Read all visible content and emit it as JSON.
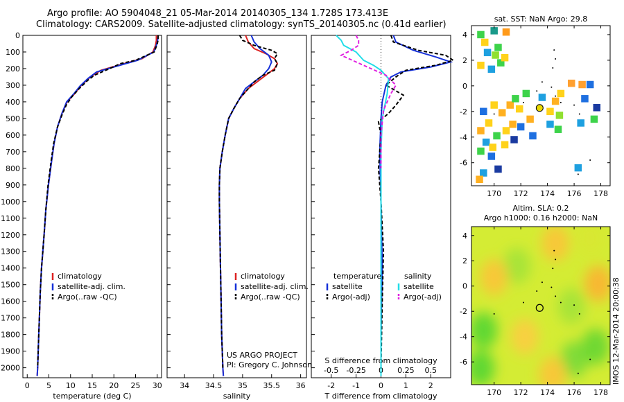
{
  "header": {
    "line1": "Argo profile: AO 5904048_21 05-Mar-2014 20140305_134 1.728S 173.413E",
    "line2": "Climatology: CARS2009. Satellite-adjusted climatology: synTS_20140305.nc (0.41d earlier)"
  },
  "footer_stamp": "IMOS 12-Mar-2014 20:00:38",
  "colors": {
    "climatology": "#dd2222",
    "satellite": "#1530d8",
    "argo": "#000000",
    "sal_satellite": "#22dde8",
    "sal_argo": "#e020e0"
  },
  "chart_data": [
    {
      "id": "temperature",
      "type": "line",
      "xlabel": "temperature (deg C)",
      "ylabel": "",
      "xlim": [
        -1,
        31
      ],
      "ylim": [
        2060,
        0
      ],
      "xticks": [
        0,
        5,
        10,
        15,
        20,
        25,
        30
      ],
      "xtick_labels": [
        "0",
        "5",
        "10",
        "15",
        "20",
        "25",
        "30"
      ],
      "yticks": [
        0,
        100,
        200,
        300,
        400,
        500,
        600,
        700,
        800,
        900,
        1000,
        1100,
        1200,
        1300,
        1400,
        1500,
        1600,
        1700,
        1800,
        1900,
        2000
      ],
      "ytick_labels": [
        "0",
        "100",
        "200",
        "300",
        "400",
        "500",
        "600",
        "700",
        "800",
        "900",
        "1000",
        "1100",
        "1200",
        "1300",
        "1400",
        "1500",
        "1600",
        "1700",
        "1800",
        "1900",
        "2000"
      ],
      "legend": {
        "position": "lower-left",
        "items": [
          "climatology",
          "satellite-adj. clim.",
          "Argo(..raw -QC)"
        ]
      },
      "series": [
        {
          "name": "climatology",
          "color_key": "climatology",
          "dash": false,
          "x": [
            29.8,
            29.8,
            29.6,
            29.0,
            26.5,
            21.0,
            17.0,
            14.6,
            12.5,
            11.0,
            9.2,
            8.0,
            7.0,
            6.2,
            5.6,
            4.9,
            4.3,
            3.9,
            3.3,
            3.0,
            2.8,
            2.6,
            2.4,
            2.3
          ],
          "y": [
            0,
            30,
            60,
            100,
            140,
            180,
            210,
            250,
            300,
            350,
            400,
            470,
            550,
            650,
            760,
            900,
            1050,
            1200,
            1400,
            1550,
            1700,
            1850,
            2000,
            2050
          ]
        },
        {
          "name": "satellite-adj. clim.",
          "color_key": "satellite",
          "dash": false,
          "x": [
            30.2,
            30.1,
            29.8,
            29.2,
            25.5,
            20.0,
            16.0,
            14.0,
            12.2,
            10.8,
            9.1,
            8.0,
            7.0,
            6.2,
            5.6,
            4.9,
            4.3,
            3.9,
            3.3,
            3.0,
            2.8,
            2.6,
            2.4,
            2.3
          ],
          "y": [
            0,
            30,
            60,
            100,
            150,
            190,
            220,
            260,
            305,
            350,
            400,
            470,
            550,
            650,
            760,
            900,
            1050,
            1200,
            1400,
            1550,
            1700,
            1850,
            2000,
            2050
          ]
        },
        {
          "name": "Argo(..raw -QC)",
          "color_key": "argo",
          "dash": true,
          "x": [
            30.2,
            30.2,
            29.9,
            29.3,
            25.0,
            21.5,
            19.0,
            15.5,
            14.0,
            12.0,
            10.3,
            9.0,
            8.0,
            7.0,
            6.1,
            5.5,
            4.8,
            4.3,
            3.9,
            3.3,
            3.0,
            2.8,
            2.6,
            2.4
          ],
          "y": [
            0,
            30,
            60,
            100,
            150,
            170,
            200,
            240,
            270,
            320,
            370,
            420,
            480,
            550,
            650,
            760,
            900,
            1050,
            1200,
            1400,
            1550,
            1700,
            1850,
            2000
          ]
        }
      ]
    },
    {
      "id": "salinity",
      "type": "line",
      "xlabel": "salinity",
      "ylabel": "",
      "xlim": [
        33.7,
        36.1
      ],
      "ylim": [
        2060,
        0
      ],
      "xticks": [
        34,
        34.5,
        35,
        35.5,
        36
      ],
      "xtick_labels": [
        "34",
        "34.5",
        "35",
        "35.5",
        "36"
      ],
      "legend": {
        "position": "lower-left",
        "items": [
          "climatology",
          "satellite-adj. clim.",
          "Argo(..raw -QC)"
        ]
      },
      "annotation": {
        "line1": "US ARGO PROJECT",
        "line2": "PI: Gregory C. Johnson"
      },
      "series": [
        {
          "name": "climatology",
          "color_key": "climatology",
          "dash": false,
          "x": [
            35.05,
            35.1,
            35.2,
            35.4,
            35.55,
            35.6,
            35.55,
            35.4,
            35.25,
            35.1,
            34.95,
            34.85,
            34.76,
            34.7,
            34.65,
            34.61,
            34.6,
            34.6,
            34.61,
            34.62,
            34.63,
            34.64,
            34.65,
            34.66,
            34.67
          ],
          "y": [
            0,
            40,
            80,
            110,
            140,
            170,
            200,
            240,
            280,
            320,
            380,
            440,
            500,
            600,
            700,
            800,
            900,
            1000,
            1200,
            1400,
            1600,
            1800,
            1900,
            2000,
            2050
          ]
        },
        {
          "name": "satellite-adj. clim.",
          "color_key": "satellite",
          "dash": false,
          "x": [
            35.15,
            35.2,
            35.3,
            35.45,
            35.5,
            35.45,
            35.35,
            35.2,
            35.05,
            34.95,
            34.85,
            34.76,
            34.7,
            34.65,
            34.61,
            34.6,
            34.6,
            34.61,
            34.62,
            34.63,
            34.64,
            34.65,
            34.66,
            34.67
          ],
          "y": [
            0,
            40,
            80,
            120,
            160,
            200,
            240,
            280,
            320,
            380,
            440,
            500,
            600,
            700,
            800,
            900,
            1000,
            1200,
            1400,
            1600,
            1800,
            1900,
            2000,
            2050
          ]
        },
        {
          "name": "Argo(..raw -QC)",
          "color_key": "argo",
          "dash": true,
          "x": [
            34.95,
            35.0,
            35.2,
            35.5,
            35.6,
            35.55,
            35.6,
            35.55,
            35.35,
            35.2,
            35.1,
            34.95,
            34.85,
            34.76,
            34.7,
            34.65,
            34.61,
            34.6,
            34.6,
            34.61,
            34.62,
            34.63,
            34.64,
            34.65,
            34.66
          ],
          "y": [
            0,
            30,
            60,
            90,
            110,
            140,
            170,
            210,
            240,
            280,
            320,
            380,
            440,
            500,
            600,
            700,
            800,
            900,
            1000,
            1200,
            1400,
            1600,
            1800,
            1900,
            2000
          ]
        }
      ]
    },
    {
      "id": "difference",
      "type": "line",
      "xlabel": "T difference from climatology",
      "xlabel_top": "S difference from climatology",
      "xlim": [
        -2.8,
        2.8
      ],
      "ylim": [
        2060,
        0
      ],
      "xticks": [
        -2,
        -1,
        0,
        1,
        2
      ],
      "xtick_labels": [
        "-2",
        "-1",
        "0",
        "1",
        "2"
      ],
      "sticks": [
        -0.5,
        -0.25,
        0,
        0.25,
        0.5
      ],
      "stick_labels": [
        "-0.5",
        "-0.25",
        "0",
        "0.25",
        "0.5"
      ],
      "legend_temp": {
        "title": "temperature",
        "items": [
          "satellite",
          "Argo(-adj)"
        ]
      },
      "legend_sal": {
        "title": "salinity",
        "items": [
          "satellite",
          "Argo(-adj)"
        ]
      },
      "series": [
        {
          "name": "T satellite",
          "color_key": "satellite",
          "dash": false,
          "x": [
            0.5,
            0.6,
            1.3,
            2.2,
            2.8,
            2.0,
            0.8,
            0.4,
            0.2,
            0.05,
            0.0,
            -0.05,
            0.0,
            0.05,
            0.0,
            0.0
          ],
          "y": [
            0,
            40,
            90,
            130,
            160,
            190,
            220,
            250,
            300,
            400,
            500,
            700,
            1000,
            1400,
            1800,
            2050
          ]
        },
        {
          "name": "T Argo(-adj)",
          "color_key": "argo",
          "dash": true,
          "x": [
            0.4,
            0.5,
            1.5,
            2.6,
            2.9,
            2.2,
            1.0,
            0.6,
            0.2,
            0.9,
            0.6,
            0.3,
            -0.1,
            0.0,
            -0.1,
            0.0,
            0.1,
            0.05,
            0.0
          ],
          "y": [
            0,
            40,
            90,
            120,
            150,
            180,
            210,
            250,
            300,
            360,
            420,
            470,
            520,
            600,
            800,
            1000,
            1300,
            1600,
            2000
          ]
        },
        {
          "name": "S satellite",
          "color_key": "sal_satellite",
          "dash": false,
          "x": [
            -1.8,
            -1.6,
            -1.5,
            -1.0,
            -0.7,
            -0.3,
            0.0,
            0.3,
            0.25,
            0.05,
            0.0,
            0.0,
            0.0,
            0.0
          ],
          "y": [
            0,
            30,
            60,
            100,
            150,
            180,
            210,
            260,
            350,
            500,
            700,
            1000,
            1500,
            2050
          ]
        },
        {
          "name": "S Argo(-adj)",
          "color_key": "sal_argo",
          "dash": true,
          "x": [
            -1.0,
            -0.9,
            -0.9,
            -1.2,
            -1.6,
            -1.0,
            -0.4,
            0.2,
            0.6,
            0.4,
            0.1,
            0.0,
            0.0
          ],
          "y": [
            0,
            30,
            60,
            90,
            120,
            160,
            200,
            240,
            300,
            350,
            450,
            600,
            800
          ]
        }
      ]
    },
    {
      "id": "map-sst",
      "type": "heatmap",
      "title": "sat. SST: NaN Argo: 29.8",
      "xlim": [
        168.3,
        178.7
      ],
      "ylim": [
        -7.8,
        4.7
      ],
      "xticks": [
        170,
        172,
        174,
        176,
        178
      ],
      "yticks": [
        -6,
        -4,
        -2,
        0,
        2,
        4
      ],
      "float_position": {
        "lon": 173.413,
        "lat": -1.728
      },
      "cells": [
        {
          "lon": 169.0,
          "lat": 4.0,
          "c": "#3dd34a"
        },
        {
          "lon": 170.0,
          "lat": 4.3,
          "c": "#1a9a8a"
        },
        {
          "lon": 170.9,
          "lat": 4.2,
          "c": "#ff9a1a"
        },
        {
          "lon": 169.3,
          "lat": 3.4,
          "c": "#ffd21a"
        },
        {
          "lon": 170.3,
          "lat": 3.0,
          "c": "#3dd34a"
        },
        {
          "lon": 169.5,
          "lat": 2.6,
          "c": "#1ea0e0"
        },
        {
          "lon": 170.1,
          "lat": 2.4,
          "c": "#90e030"
        },
        {
          "lon": 169.0,
          "lat": 1.6,
          "c": "#ffd21a"
        },
        {
          "lon": 170.5,
          "lat": 1.8,
          "c": "#3dd34a"
        },
        {
          "lon": 170.8,
          "lat": 2.2,
          "c": "#ffd21a"
        },
        {
          "lon": 169.8,
          "lat": 1.3,
          "c": "#1ea0e0"
        },
        {
          "lon": 175.8,
          "lat": 0.2,
          "c": "#ffa030"
        },
        {
          "lon": 176.6,
          "lat": 0.1,
          "c": "#ffa030"
        },
        {
          "lon": 177.2,
          "lat": 0.1,
          "c": "#1e6fe0"
        },
        {
          "lon": 175.0,
          "lat": -0.6,
          "c": "#ffd21a"
        },
        {
          "lon": 173.6,
          "lat": -0.9,
          "c": "#1ea0e0"
        },
        {
          "lon": 172.4,
          "lat": -0.6,
          "c": "#3dd34a"
        },
        {
          "lon": 174.6,
          "lat": -1.2,
          "c": "#ffb020"
        },
        {
          "lon": 176.8,
          "lat": -1.0,
          "c": "#1e6fe0"
        },
        {
          "lon": 174.2,
          "lat": -2.0,
          "c": "#ffd21a"
        },
        {
          "lon": 174.9,
          "lat": -2.3,
          "c": "#90e030"
        },
        {
          "lon": 174.2,
          "lat": -3.0,
          "c": "#1ea0e0"
        },
        {
          "lon": 174.8,
          "lat": -3.4,
          "c": "#3dd34a"
        },
        {
          "lon": 176.5,
          "lat": -2.9,
          "c": "#1ea0e0"
        },
        {
          "lon": 177.7,
          "lat": -1.7,
          "c": "#1a3aa0"
        },
        {
          "lon": 177.5,
          "lat": -2.6,
          "c": "#3dd34a"
        },
        {
          "lon": 172.7,
          "lat": -2.6,
          "c": "#ffb020"
        },
        {
          "lon": 172.0,
          "lat": -3.2,
          "c": "#1e6fe0"
        },
        {
          "lon": 171.2,
          "lat": -1.5,
          "c": "#ffb020"
        },
        {
          "lon": 171.6,
          "lat": -1.0,
          "c": "#3dd34a"
        },
        {
          "lon": 172.9,
          "lat": -3.9,
          "c": "#1e6fe0"
        },
        {
          "lon": 170.0,
          "lat": -1.5,
          "c": "#ffd21a"
        },
        {
          "lon": 170.6,
          "lat": -2.1,
          "c": "#ffb020"
        },
        {
          "lon": 169.2,
          "lat": -2.0,
          "c": "#1e6fe0"
        },
        {
          "lon": 169.6,
          "lat": -2.9,
          "c": "#ffd21a"
        },
        {
          "lon": 169.0,
          "lat": -3.5,
          "c": "#ffb020"
        },
        {
          "lon": 170.2,
          "lat": -3.9,
          "c": "#3dd34a"
        },
        {
          "lon": 169.4,
          "lat": -4.4,
          "c": "#1ea0e0"
        },
        {
          "lon": 170.8,
          "lat": -4.6,
          "c": "#ffd21a"
        },
        {
          "lon": 171.5,
          "lat": -4.2,
          "c": "#1a3aa0"
        },
        {
          "lon": 169.0,
          "lat": -5.1,
          "c": "#3dd34a"
        },
        {
          "lon": 169.8,
          "lat": -5.5,
          "c": "#1e6fe0"
        },
        {
          "lon": 170.3,
          "lat": -6.5,
          "c": "#1a3aa0"
        },
        {
          "lon": 169.2,
          "lat": -6.8,
          "c": "#1ea0e0"
        },
        {
          "lon": 176.3,
          "lat": -6.4,
          "c": "#1ea0e0"
        },
        {
          "lon": 171.4,
          "lat": -3.0,
          "c": "#ffb020"
        },
        {
          "lon": 171.9,
          "lat": -1.8,
          "c": "#ffd21a"
        },
        {
          "lon": 170.9,
          "lat": -3.5,
          "c": "#ffd21a"
        },
        {
          "lon": 169.9,
          "lat": -4.8,
          "c": "#ffd21a"
        },
        {
          "lon": 168.9,
          "lat": -7.3,
          "c": "#ffb020"
        }
      ]
    },
    {
      "id": "map-sla",
      "type": "heatmap",
      "title_line1": "Altim. SLA: 0.2",
      "title_line2": "Argo h1000: 0.16 h2000: NaN",
      "xlim": [
        168.3,
        178.7
      ],
      "ylim": [
        -7.8,
        4.7
      ],
      "xticks": [
        170,
        172,
        174,
        176,
        178
      ],
      "yticks": [
        -6,
        -4,
        -2,
        0,
        2,
        4
      ],
      "float_position": {
        "lon": 173.413,
        "lat": -1.728
      },
      "blobs": [
        {
          "lon": 169.2,
          "lat": -3.5,
          "c": "#60d830"
        },
        {
          "lon": 169.0,
          "lat": -6.5,
          "c": "#60d830"
        },
        {
          "lon": 176.0,
          "lat": -5.8,
          "c": "#80dc38"
        },
        {
          "lon": 177.6,
          "lat": -4.8,
          "c": "#70d830"
        },
        {
          "lon": 175.8,
          "lat": -1.6,
          "c": "#a8e438"
        },
        {
          "lon": 171.7,
          "lat": 1.6,
          "c": "#a8e438"
        },
        {
          "lon": 177.8,
          "lat": 0.2,
          "c": "#f8b830"
        },
        {
          "lon": 170.0,
          "lat": 0.7,
          "c": "#f8c838"
        },
        {
          "lon": 174.6,
          "lat": 3.4,
          "c": "#f8c838"
        },
        {
          "lon": 172.3,
          "lat": -4.0,
          "c": "#f8d040"
        },
        {
          "lon": 174.4,
          "lat": -7.0,
          "c": "#f8c838"
        },
        {
          "lon": 177.2,
          "lat": 3.8,
          "c": "#d8e830"
        }
      ]
    }
  ]
}
